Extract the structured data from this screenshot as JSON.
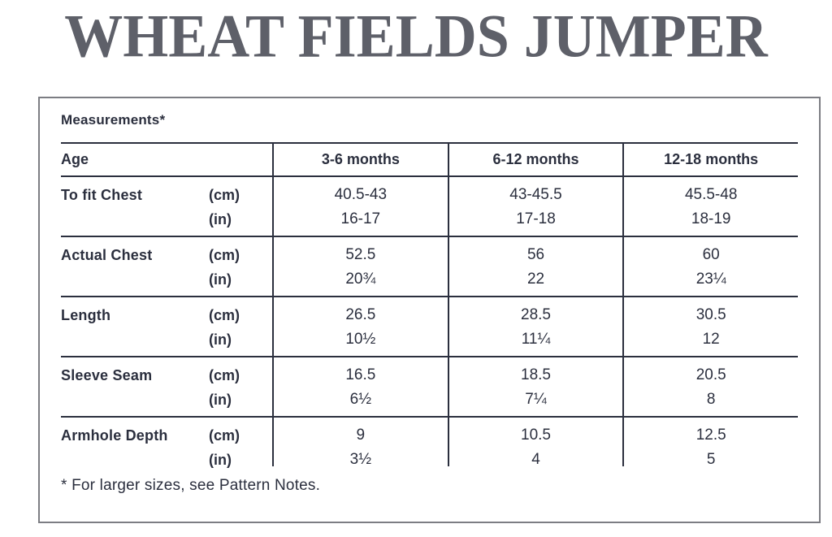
{
  "page": {
    "title": "WHEAT FIELDS JUMPER"
  },
  "panel": {
    "heading": "Measurements*",
    "footnote": "* For larger sizes, see Pattern Notes."
  },
  "units": {
    "cm": "(cm)",
    "in": "(in)"
  },
  "colors": {
    "text": "#2b2f3e",
    "title": "#5e6069",
    "panel_border": "#7c7d83",
    "background": "#ffffff"
  },
  "chart_data": {
    "type": "table",
    "title": "Measurements*",
    "columns": [
      "Age",
      "3-6 months",
      "6-12 months",
      "12-18 months"
    ],
    "rows": [
      {
        "label": "To fit Chest",
        "cm": [
          "40.5-43",
          "43-45.5",
          "45.5-48"
        ],
        "in": [
          "16-17",
          "17-18",
          "18-19"
        ]
      },
      {
        "label": "Actual Chest",
        "cm": [
          "52.5",
          "56",
          "60"
        ],
        "in": [
          "20¾",
          "22",
          "23¼"
        ]
      },
      {
        "label": "Length",
        "cm": [
          "26.5",
          "28.5",
          "30.5"
        ],
        "in": [
          "10½",
          "11¼",
          "12"
        ]
      },
      {
        "label": "Sleeve Seam",
        "cm": [
          "16.5",
          "18.5",
          "20.5"
        ],
        "in": [
          "6½",
          "7¼",
          "8"
        ]
      },
      {
        "label": "Armhole Depth",
        "cm": [
          "9",
          "10.5",
          "12.5"
        ],
        "in": [
          "3½",
          "4",
          "5"
        ]
      }
    ]
  }
}
